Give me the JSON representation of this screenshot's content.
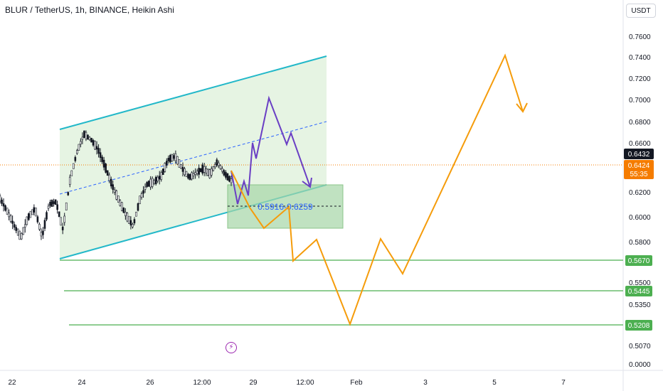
{
  "header": {
    "title": "BLUR / TetherUS, 1h, BINANCE, Heikin Ashi",
    "currency": "USDT"
  },
  "colors": {
    "channel_line": "#22b8c9",
    "channel_fill": "#e6f4e3",
    "purple_path": "#6a3fc4",
    "orange_path": "#f59c0b",
    "support_line": "#4caf50",
    "support_label_bg": "#4caf50",
    "price_label_bg": "#131722",
    "countdown_bg": "#f57c00",
    "target_box_fill": "#a5d6a7",
    "target_text": "#2962ff",
    "candle": "#131722"
  },
  "icons": {
    "event_icon": "lightning-icon"
  },
  "chart_data": {
    "type": "candlestick",
    "title": "BLUR / TetherUS, 1h, BINANCE, Heikin Ashi",
    "y_ticks": [
      "0.7600",
      "0.7400",
      "0.7200",
      "0.7000",
      "0.6800",
      "0.6600",
      "0.6200",
      "0.6000",
      "0.5800",
      "0.5500",
      "0.5350",
      "0.5070",
      "0.0000"
    ],
    "x_ticks": [
      "22",
      "24",
      "26",
      "12:00",
      "29",
      "12:00",
      "Feb",
      "3",
      "5",
      "7"
    ],
    "price_labels": {
      "last_price": "0.6432",
      "current": "0.6424",
      "countdown": "55:35"
    },
    "support_levels": [
      "0.5670",
      "0.5445",
      "0.5208"
    ],
    "target_zone": "0.5916-0.6259",
    "price_series_approx": [
      0.614,
      0.603,
      0.59,
      0.579,
      0.597,
      0.605,
      0.579,
      0.609,
      0.611,
      0.586,
      0.631,
      0.656,
      0.672,
      0.667,
      0.658,
      0.643,
      0.626,
      0.612,
      0.599,
      0.589,
      0.614,
      0.627,
      0.629,
      0.634,
      0.649,
      0.652,
      0.641,
      0.633,
      0.637,
      0.641,
      0.636,
      0.647,
      0.637,
      0.63
    ],
    "projection_orange": [
      0.638,
      0.601,
      0.591,
      0.605,
      0.567,
      0.584,
      0.521,
      0.583,
      0.561,
      0.742,
      0.688
    ],
    "projection_purple": [
      0.638,
      0.608,
      0.661,
      0.646,
      0.701,
      0.663,
      0.625
    ]
  }
}
